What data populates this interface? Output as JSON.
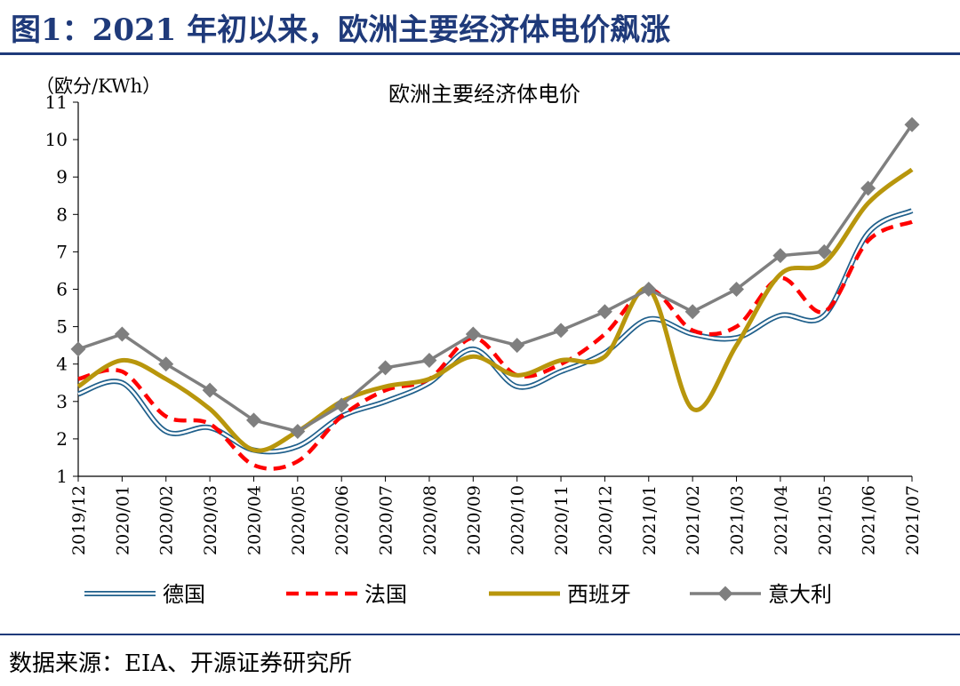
{
  "figure": {
    "title": "图1：2021 年初以来，欧洲主要经济体电价飙涨",
    "source": "数据来源：EIA、开源证券研究所"
  },
  "chart_data": {
    "type": "line",
    "title": "欧洲主要经济体电价",
    "ylabel": "（欧分/KWh）",
    "xlabel": "",
    "ylim": [
      1,
      11
    ],
    "yticks": [
      1,
      2,
      3,
      4,
      5,
      6,
      7,
      8,
      9,
      10,
      11
    ],
    "legend_position": "bottom",
    "grid": false,
    "x": [
      "2019/12",
      "2020/01",
      "2020/02",
      "2020/03",
      "2020/04",
      "2020/05",
      "2020/06",
      "2020/07",
      "2020/08",
      "2020/09",
      "2020/10",
      "2020/11",
      "2020/12",
      "2021/01",
      "2021/02",
      "2021/03",
      "2021/04",
      "2021/05",
      "2021/06",
      "2021/07"
    ],
    "series": [
      {
        "name": "德国",
        "color": "#1f5f8b",
        "style": "double",
        "values": [
          3.2,
          3.5,
          2.2,
          2.3,
          1.7,
          1.8,
          2.6,
          3.0,
          3.5,
          4.4,
          3.4,
          3.8,
          4.3,
          5.2,
          4.8,
          4.7,
          5.3,
          5.3,
          7.5,
          8.1
        ]
      },
      {
        "name": "法国",
        "color": "#ff0000",
        "style": "dashed",
        "values": [
          3.6,
          3.8,
          2.6,
          2.4,
          1.3,
          1.4,
          2.6,
          3.3,
          3.6,
          4.7,
          3.7,
          4.0,
          4.8,
          6.0,
          4.9,
          5.0,
          6.3,
          5.4,
          7.3,
          7.8
        ]
      },
      {
        "name": "西班牙",
        "color": "#b8960c",
        "style": "solid-thick",
        "values": [
          3.4,
          4.1,
          3.6,
          2.8,
          1.7,
          2.2,
          3.0,
          3.4,
          3.6,
          4.2,
          3.7,
          4.1,
          4.2,
          6.0,
          2.8,
          4.5,
          6.4,
          6.7,
          8.3,
          9.2
        ]
      },
      {
        "name": "意大利",
        "color": "#7f7f7f",
        "style": "marker",
        "values": [
          4.4,
          4.8,
          4.0,
          3.3,
          2.5,
          2.2,
          2.9,
          3.9,
          4.1,
          4.8,
          4.5,
          4.9,
          5.4,
          6.0,
          5.4,
          6.0,
          6.9,
          7.0,
          8.7,
          10.4
        ]
      }
    ]
  }
}
